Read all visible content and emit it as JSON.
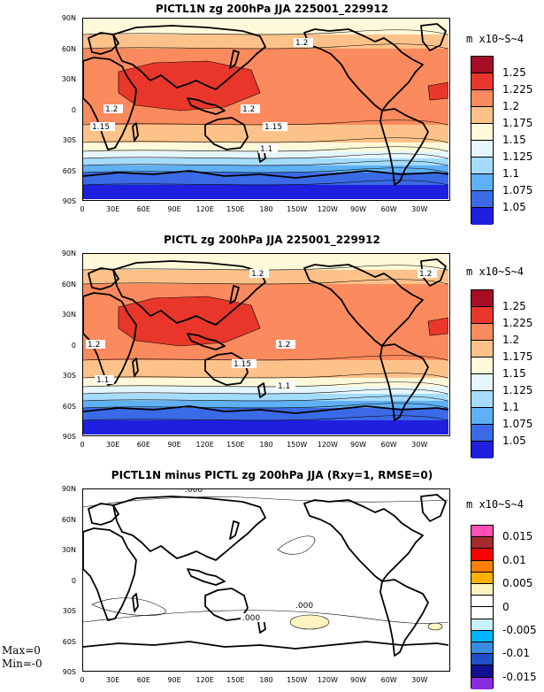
{
  "panels": [
    {
      "title": "PICTL1N zg 200hPa JJA 225001_229912",
      "units": "m x10~S~4",
      "colorbar": {
        "colors": [
          "#a50f25",
          "#e8372a",
          "#fb8a5e",
          "#fdc28a",
          "#fff9d9",
          "#e6f6ff",
          "#a5dcfb",
          "#5fb0f5",
          "#3b6ae6",
          "#1f1fe0"
        ],
        "labels": [
          "1.25",
          "1.225",
          "1.2",
          "1.175",
          "1.15",
          "1.125",
          "1.1",
          "1.075",
          "1.05"
        ]
      },
      "contour_labels": [
        "1.2",
        "1.2",
        "1.2",
        "1.15",
        "1.15",
        "1.1"
      ]
    },
    {
      "title": "PICTL zg 200hPa JJA 225001_229912",
      "units": "m x10~S~4",
      "colorbar": {
        "colors": [
          "#a50f25",
          "#e8372a",
          "#fb8a5e",
          "#fdc28a",
          "#fff9d9",
          "#e6f6ff",
          "#a5dcfb",
          "#5fb0f5",
          "#3b6ae6",
          "#1f1fe0"
        ],
        "labels": [
          "1.25",
          "1.225",
          "1.2",
          "1.175",
          "1.15",
          "1.125",
          "1.1",
          "1.075",
          "1.05"
        ]
      },
      "contour_labels": [
        "1.2",
        "1.2",
        "1.2",
        "1.2",
        "1.15",
        "1.1",
        "1.1"
      ]
    },
    {
      "title": "PICTL1N minus PICTL zg 200hPa JJA (Rxy=1, RMSE=0)",
      "units": "m x10~S~4",
      "colorbar": {
        "colors": [
          "#ff4fb3",
          "#a52a2a",
          "#ff0000",
          "#ff7f00",
          "#ffb000",
          "#fff3c0",
          "#ffffff",
          "#ffffff",
          "#c8f0ff",
          "#00b4ff",
          "#3b8ce0",
          "#2050c8",
          "#101090",
          "#8a2be2"
        ],
        "labels": [
          "0.015",
          "0.01",
          "0.005",
          "0",
          "-0.005",
          "-0.01",
          "-0.015"
        ]
      },
      "contour_labels": [
        ".000",
        ".000",
        ".000"
      ],
      "max_text": "Max=0",
      "min_text": "Min=-0"
    }
  ],
  "lat_labels": [
    "90N",
    "60N",
    "30N",
    "0",
    "30S",
    "60S",
    "90S"
  ],
  "lon_labels": [
    "0",
    "30E",
    "60E",
    "90E",
    "120E",
    "150E",
    "180",
    "150W",
    "120W",
    "90W",
    "60W",
    "30W"
  ]
}
